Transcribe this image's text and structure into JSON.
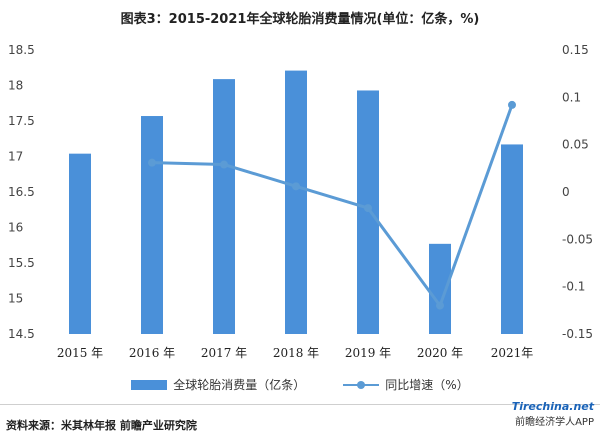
{
  "title": "图表3：2015-2021年全球轮胎消费量情况(单位：亿条，%)",
  "source": "资料来源：米其林年报 前瞻产业研究院",
  "watermark": {
    "site": "Tirechina.net",
    "app": "前瞻经济学人APP"
  },
  "colors": {
    "bar": "#4A90D9",
    "line": "#5B9BD5",
    "axis_text": "#444444"
  },
  "chart_data": {
    "type": "bar",
    "categories": [
      "2015 年",
      "2016 年",
      "2017 年",
      "2018 年",
      "2019 年",
      "2020 年",
      "2021年"
    ],
    "series": [
      {
        "name": "全球轮胎消费量（亿条）",
        "type": "bar",
        "axis": "left",
        "values": [
          17.04,
          17.57,
          18.09,
          18.21,
          17.93,
          15.77,
          17.17
        ]
      },
      {
        "name": "同比增速（%）",
        "type": "line",
        "axis": "right",
        "values": [
          null,
          0.031,
          0.029,
          0.006,
          -0.017,
          -0.12,
          0.092
        ]
      }
    ],
    "y_left": {
      "min": 14.5,
      "max": 18.5,
      "ticks": [
        18.5,
        18,
        17.5,
        17,
        16.5,
        16,
        15.5,
        15,
        14.5
      ],
      "tick_labels": [
        "18.5",
        "18",
        "17.5",
        "17",
        "16.5",
        "16",
        "15.5",
        "15",
        "14.5"
      ]
    },
    "y_right": {
      "min": -0.15,
      "max": 0.15,
      "ticks": [
        0.15,
        0.1,
        0.05,
        0,
        -0.05,
        -0.1,
        -0.15
      ],
      "tick_labels": [
        "0.15",
        "0.1",
        "0.05",
        "0",
        "-0.05",
        "-0.1",
        "-0.15"
      ]
    },
    "grid": false,
    "legend_position": "bottom"
  }
}
